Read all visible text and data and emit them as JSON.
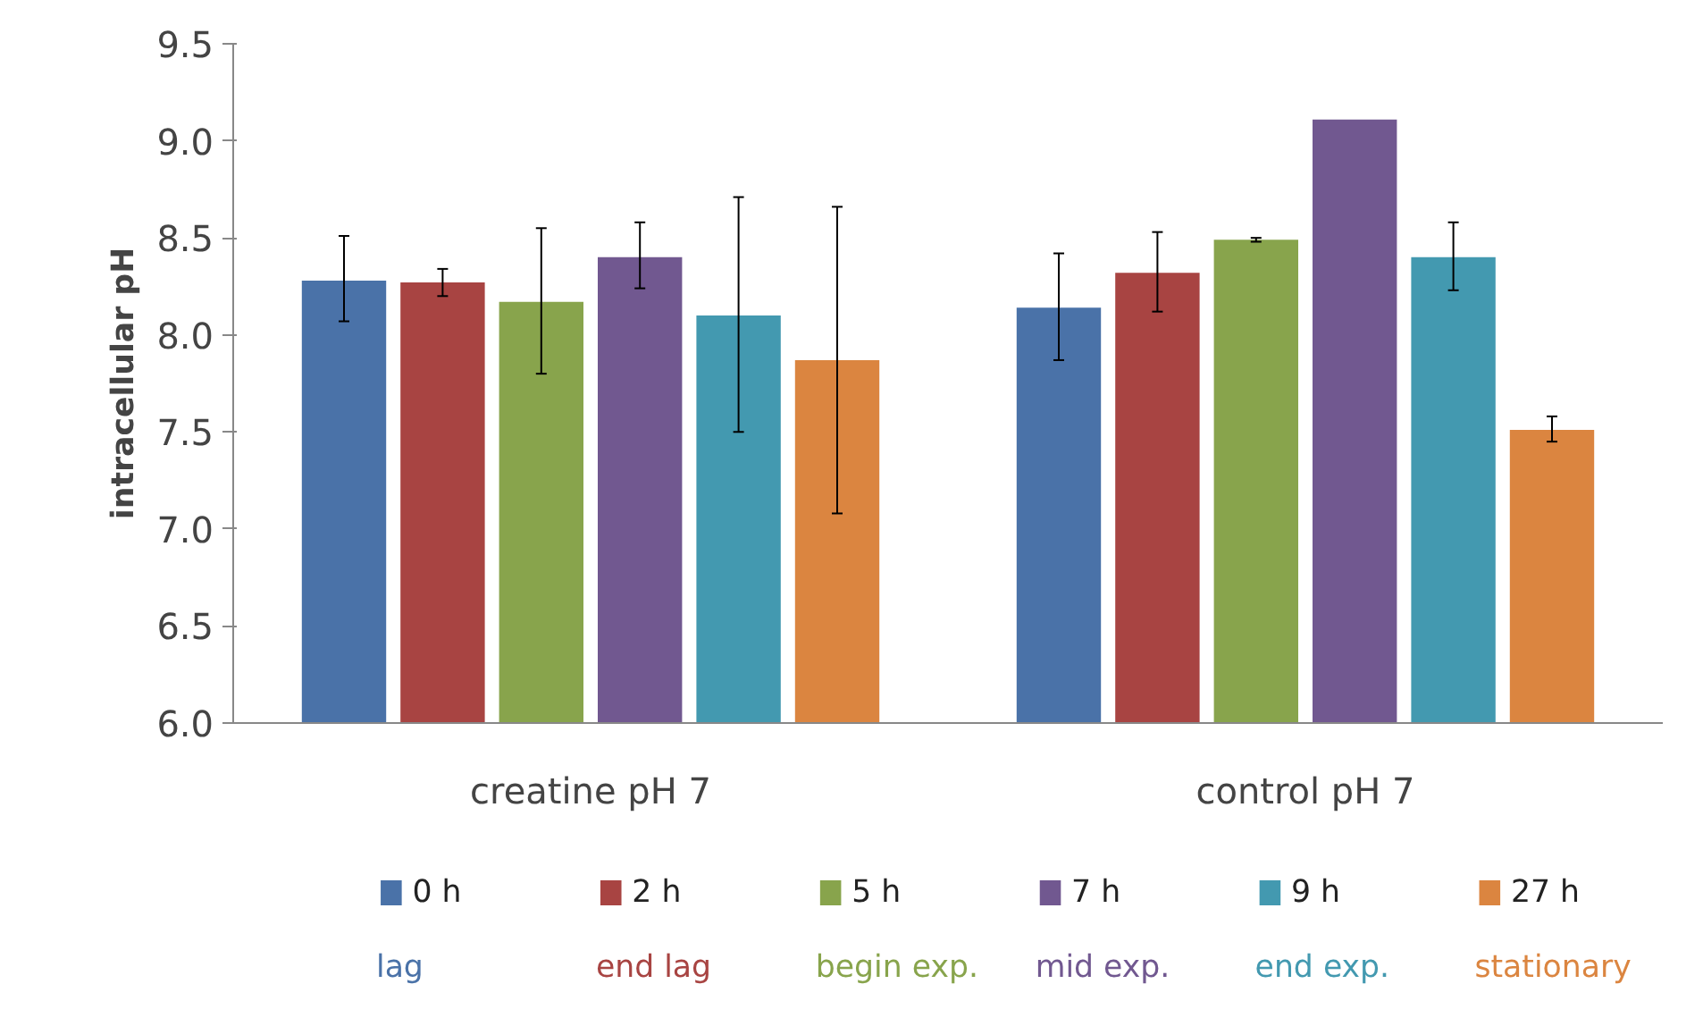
{
  "chart_data": {
    "type": "bar",
    "ylabel": "intracellular pH",
    "categories": [
      "creatine pH 7",
      "control pH 7"
    ],
    "ylim": [
      6.0,
      9.5
    ],
    "yticks": [
      {
        "value": 6.0,
        "label": "6.0"
      },
      {
        "value": 6.5,
        "label": "6.5"
      },
      {
        "value": 7.0,
        "label": "7.0"
      },
      {
        "value": 7.5,
        "label": "7.5"
      },
      {
        "value": 8.0,
        "label": "8.0"
      },
      {
        "value": 8.5,
        "label": "8.5"
      },
      {
        "value": 9.0,
        "label": "9.0"
      },
      {
        "value": 9.5,
        "label": "9.5"
      }
    ],
    "series": [
      {
        "name": "0 h",
        "color": "#4a72a8",
        "values": [
          8.28,
          8.14
        ],
        "errors": [
          [
            8.07,
            8.51
          ],
          [
            7.87,
            8.42
          ]
        ]
      },
      {
        "name": "2 h",
        "color": "#a84442",
        "values": [
          8.27,
          8.32
        ],
        "errors": [
          [
            8.2,
            8.34
          ],
          [
            8.12,
            8.53
          ]
        ]
      },
      {
        "name": "5 h",
        "color": "#88a44c",
        "values": [
          8.17,
          8.49
        ],
        "errors": [
          [
            7.8,
            8.55
          ],
          [
            8.48,
            8.5
          ]
        ]
      },
      {
        "name": "7 h",
        "color": "#715890",
        "values": [
          8.4,
          9.11
        ],
        "errors": [
          [
            8.24,
            8.58
          ],
          null
        ]
      },
      {
        "name": "9 h",
        "color": "#4399b0",
        "values": [
          8.1,
          8.4
        ],
        "errors": [
          [
            7.5,
            8.71
          ],
          [
            8.23,
            8.58
          ]
        ]
      },
      {
        "name": "27 h",
        "color": "#db8540",
        "values": [
          7.87,
          7.51
        ],
        "errors": [
          [
            7.08,
            8.66
          ],
          [
            7.45,
            7.58
          ]
        ]
      }
    ],
    "annotations": [
      "lag",
      "end lag",
      "begin exp.",
      "mid exp.",
      "end exp.",
      "stationary"
    ],
    "grid": false,
    "legend": "bottom"
  }
}
